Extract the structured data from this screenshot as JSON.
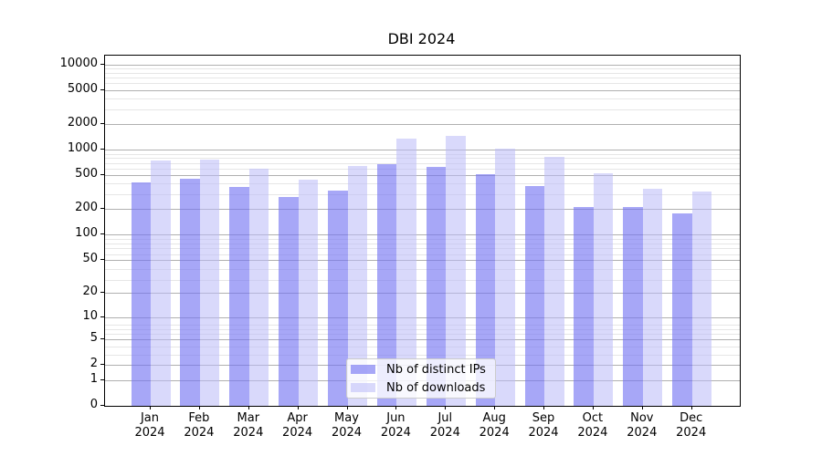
{
  "figure": {
    "title": "DBI 2024"
  },
  "legend": {
    "items": [
      {
        "label": "Nb of distinct IPs"
      },
      {
        "label": "Nb of downloads"
      }
    ]
  },
  "colors": {
    "ips_bar_composite": "#a9a9f7",
    "downloads_bar_composite": "#d9d9fa",
    "ips_bar_fill": "rgba(113,113,242,0.62)",
    "downloads_bar_fill": "rgba(186,186,247,0.55)",
    "grid_major": "#b0b0b0",
    "grid_minor": "#e6e6e6",
    "axis": "#000000"
  },
  "chart_data": {
    "type": "bar",
    "title": "DBI 2024",
    "categories": [
      "Jan 2024",
      "Feb 2024",
      "Mar 2024",
      "Apr 2024",
      "May 2024",
      "Jun 2024",
      "Jul 2024",
      "Aug 2024",
      "Sep 2024",
      "Oct 2024",
      "Nov 2024",
      "Dec 2024"
    ],
    "x_tick_months": [
      "Jan",
      "Feb",
      "Mar",
      "Apr",
      "May",
      "Jun",
      "Jul",
      "Aug",
      "Sep",
      "Oct",
      "Nov",
      "Dec"
    ],
    "x_tick_year": "2024",
    "series": [
      {
        "name": "Nb of distinct IPs",
        "color": "#a9a9f7",
        "fill": "rgba(113,113,242,0.62)",
        "values": [
          410,
          452,
          365,
          278,
          333,
          672,
          631,
          520,
          377,
          212,
          211,
          180
        ]
      },
      {
        "name": "Nb of downloads",
        "color": "#d9d9fa",
        "fill": "rgba(186,186,247,0.55)",
        "values": [
          740,
          758,
          592,
          447,
          647,
          1340,
          1460,
          1020,
          820,
          528,
          346,
          320
        ]
      }
    ],
    "y_ticks": [
      10000,
      5000,
      2000,
      1000,
      500,
      200,
      100,
      50,
      20,
      10,
      5,
      2,
      1,
      0
    ],
    "y_scale": "log10(value+1)",
    "ylim": [
      0,
      12660
    ],
    "xlabel": "",
    "ylabel": "",
    "grid": "both",
    "legend_position": "lower-center"
  }
}
